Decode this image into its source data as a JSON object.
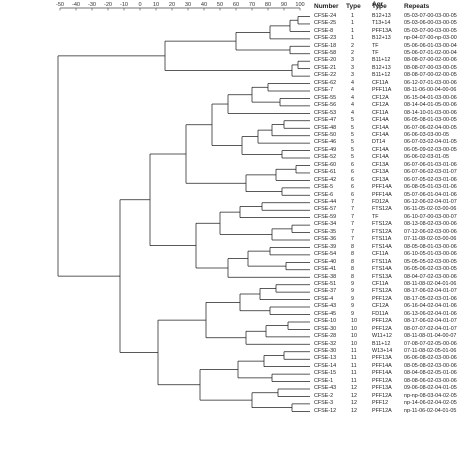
{
  "axis": {
    "ticks": [
      "-50",
      "-40",
      "-30",
      "-20",
      "-10",
      "0",
      "10",
      "20",
      "30",
      "40",
      "50",
      "60",
      "70",
      "80",
      "90",
      "100"
    ]
  },
  "headers": {
    "number": "Number",
    "type": "Type",
    "type2_top": "Agr",
    "type2": "Type",
    "repeats": "Repeats"
  },
  "rows": [
    {
      "number": "CFSE-24",
      "type": "1",
      "type2": "B12+13",
      "repeats": "05-03-07-00-03-00-05"
    },
    {
      "number": "CFSE-25",
      "type": "1",
      "type2": "T13+14",
      "repeats": "05-03-06-00-03-00-05"
    },
    {
      "number": "CFSE-8",
      "type": "1",
      "type2": "PFF13A",
      "repeats": "05-03-07-00-03-00-05"
    },
    {
      "number": "CFSE-23",
      "type": "1",
      "type2": "B12+13",
      "repeats": "np-04-07-00-np-03-00"
    },
    {
      "number": "CFSE-18",
      "type": "2",
      "type2": "TF",
      "repeats": "05-06-06-01-03-00-04"
    },
    {
      "number": "CFSE-58",
      "type": "2",
      "type2": "TF",
      "repeats": "05-06-07-01-02-00-04"
    },
    {
      "number": "CFSE-20",
      "type": "3",
      "type2": "B11+12",
      "repeats": "08-08-07-00-02-00-06"
    },
    {
      "number": "CFSE-21",
      "type": "3",
      "type2": "B12+13",
      "repeats": "08-08-07-00-03-00-05"
    },
    {
      "number": "CFSE-22",
      "type": "3",
      "type2": "B11+12",
      "repeats": "08-08-07-00-02-00-05"
    },
    {
      "number": "CFSE-62",
      "type": "4",
      "type2": "CF11A",
      "repeats": "06-12-07-01-03-00-06"
    },
    {
      "number": "CFSE-7",
      "type": "4",
      "type2": "PFF11A",
      "repeats": "08-11-06-00-04-00-06"
    },
    {
      "number": "CFSE-55",
      "type": "4",
      "type2": "CF12A",
      "repeats": "06-15-04-01-03-00-06"
    },
    {
      "number": "CFSE-56",
      "type": "4",
      "type2": "CF12A",
      "repeats": "08-14-04-01-05-00-06"
    },
    {
      "number": "CFSE-53",
      "type": "4",
      "type2": "CF11A",
      "repeats": "08-14-10-01-03-00-06"
    },
    {
      "number": "CFSE-47",
      "type": "5",
      "type2": "CF14A",
      "repeats": "06-05-08-01-03-00-05"
    },
    {
      "number": "CFSE-48",
      "type": "5",
      "type2": "CF14A",
      "repeats": "06-07-06-02-04-00-05"
    },
    {
      "number": "CFSE-50",
      "type": "5",
      "type2": "CF14A",
      "repeats": "06-06-03-03-00-05"
    },
    {
      "number": "CFSE-46",
      "type": "5",
      "type2": "DT14",
      "repeats": "06-07-03-02-04-01-05"
    },
    {
      "number": "CFSE-49",
      "type": "5",
      "type2": "CF14A",
      "repeats": "06-05-09-02-03-00-05"
    },
    {
      "number": "CFSE-52",
      "type": "5",
      "type2": "CF14A",
      "repeats": "06-06-02-03-01-05"
    },
    {
      "number": "CFSE-60",
      "type": "6",
      "type2": "CF13A",
      "repeats": "06-07-06-01-03-01-06"
    },
    {
      "number": "CFSE-61",
      "type": "6",
      "type2": "CF13A",
      "repeats": "06-07-06-02-03-01-07"
    },
    {
      "number": "CFSE-42",
      "type": "6",
      "type2": "CF13A",
      "repeats": "06-07-05-02-03-01-06"
    },
    {
      "number": "CFSE-5",
      "type": "6",
      "type2": "PFF14A",
      "repeats": "06-08-05-01-03-01-06"
    },
    {
      "number": "CFSE-6",
      "type": "6",
      "type2": "PFF14A",
      "repeats": "05-07-06-01-04-01-06"
    },
    {
      "number": "CFSE-44",
      "type": "7",
      "type2": "FD12A",
      "repeats": "06-12-06-02-04-01-07"
    },
    {
      "number": "CFSE-57",
      "type": "7",
      "type2": "FTS12A",
      "repeats": "06-11-05-02-03-00-06"
    },
    {
      "number": "CFSE-59",
      "type": "7",
      "type2": "TF",
      "repeats": "06-10-07-00-03-00-07"
    },
    {
      "number": "CFSE-34",
      "type": "7",
      "type2": "FTS12A",
      "repeats": "08-13-08-02-03-00-06"
    },
    {
      "number": "CFSE-35",
      "type": "7",
      "type2": "FTS12A",
      "repeats": "07-12-06-02-03-00-06"
    },
    {
      "number": "CFSE-36",
      "type": "7",
      "type2": "FTS11A",
      "repeats": "07-11-08-02-03-00-06"
    },
    {
      "number": "CFSE-39",
      "type": "8",
      "type2": "FTS14A",
      "repeats": "08-05-08-01-03-00-06"
    },
    {
      "number": "CFSE-54",
      "type": "8",
      "type2": "CF11A",
      "repeats": "06-10-05-01-03-00-06"
    },
    {
      "number": "CFSE-40",
      "type": "8",
      "type2": "FTS11A",
      "repeats": "05-05-05-02-03-00-05"
    },
    {
      "number": "CFSE-41",
      "type": "8",
      "type2": "FTS14A",
      "repeats": "06-05-06-02-03-00-05"
    },
    {
      "number": "CFSE-38",
      "type": "8",
      "type2": "FTS13A",
      "repeats": "08-04-07-02-03-00-06"
    },
    {
      "number": "CFSE-51",
      "type": "9",
      "type2": "CF11A",
      "repeats": "08-11-08-02-04-01-06"
    },
    {
      "number": "CFSE-37",
      "type": "9",
      "type2": "FTS12A",
      "repeats": "08-17-06-02-04-01-07"
    },
    {
      "number": "CFSE-4",
      "type": "9",
      "type2": "PFF12A",
      "repeats": "08-17-05-02-03-01-06"
    },
    {
      "number": "CFSE-43",
      "type": "9",
      "type2": "CF12A",
      "repeats": "06-16-04-02-04-01-06"
    },
    {
      "number": "CFSE-45",
      "type": "9",
      "type2": "FD11A",
      "repeats": "06-13-06-02-04-01-06"
    },
    {
      "number": "CFSE-10",
      "type": "10",
      "type2": "PFF12A",
      "repeats": "08-17-06-02-04-01-07"
    },
    {
      "number": "CFSE-30",
      "type": "10",
      "type2": "PFF12A",
      "repeats": "08-07-07-02-04-01-07"
    },
    {
      "number": "CFSE-28",
      "type": "10",
      "type2": "W11+12",
      "repeats": "08-11-08-01-04-00-07"
    },
    {
      "number": "CFSE-32",
      "type": "10",
      "type2": "B11+12",
      "repeats": "07-08-07-02-05-00-06"
    },
    {
      "number": "CFSE-30",
      "type": "11",
      "type2": "W13+14",
      "repeats": "07-11-08-02-05-01-06"
    },
    {
      "number": "CFSE-13",
      "type": "11",
      "type2": "PFF13A",
      "repeats": "06-06-08-02-03-00-06"
    },
    {
      "number": "CFSE-14",
      "type": "11",
      "type2": "PFF14A",
      "repeats": "08-05-08-02-03-00-06"
    },
    {
      "number": "CFSE-15",
      "type": "11",
      "type2": "PFF14A",
      "repeats": "08-04-08-02-05-01-06"
    },
    {
      "number": "CFSE-1",
      "type": "11",
      "type2": "PFF12A",
      "repeats": "08-08-06-02-03-00-06"
    },
    {
      "number": "CFSE-43",
      "type": "12",
      "type2": "PFF13A",
      "repeats": "09-06-08-02-04-01-05"
    },
    {
      "number": "CFSE-2",
      "type": "12",
      "type2": "PFF12A",
      "repeats": "np-np-08-03-04-02-05"
    },
    {
      "number": "CFSE-3",
      "type": "12",
      "type2": "PFF12",
      "repeats": "np-14-06-02-04-02-05"
    },
    {
      "number": "CFSE-12",
      "type": "12",
      "type2": "PFF12A",
      "repeats": "np-11-06-02-04-01-05"
    }
  ]
}
